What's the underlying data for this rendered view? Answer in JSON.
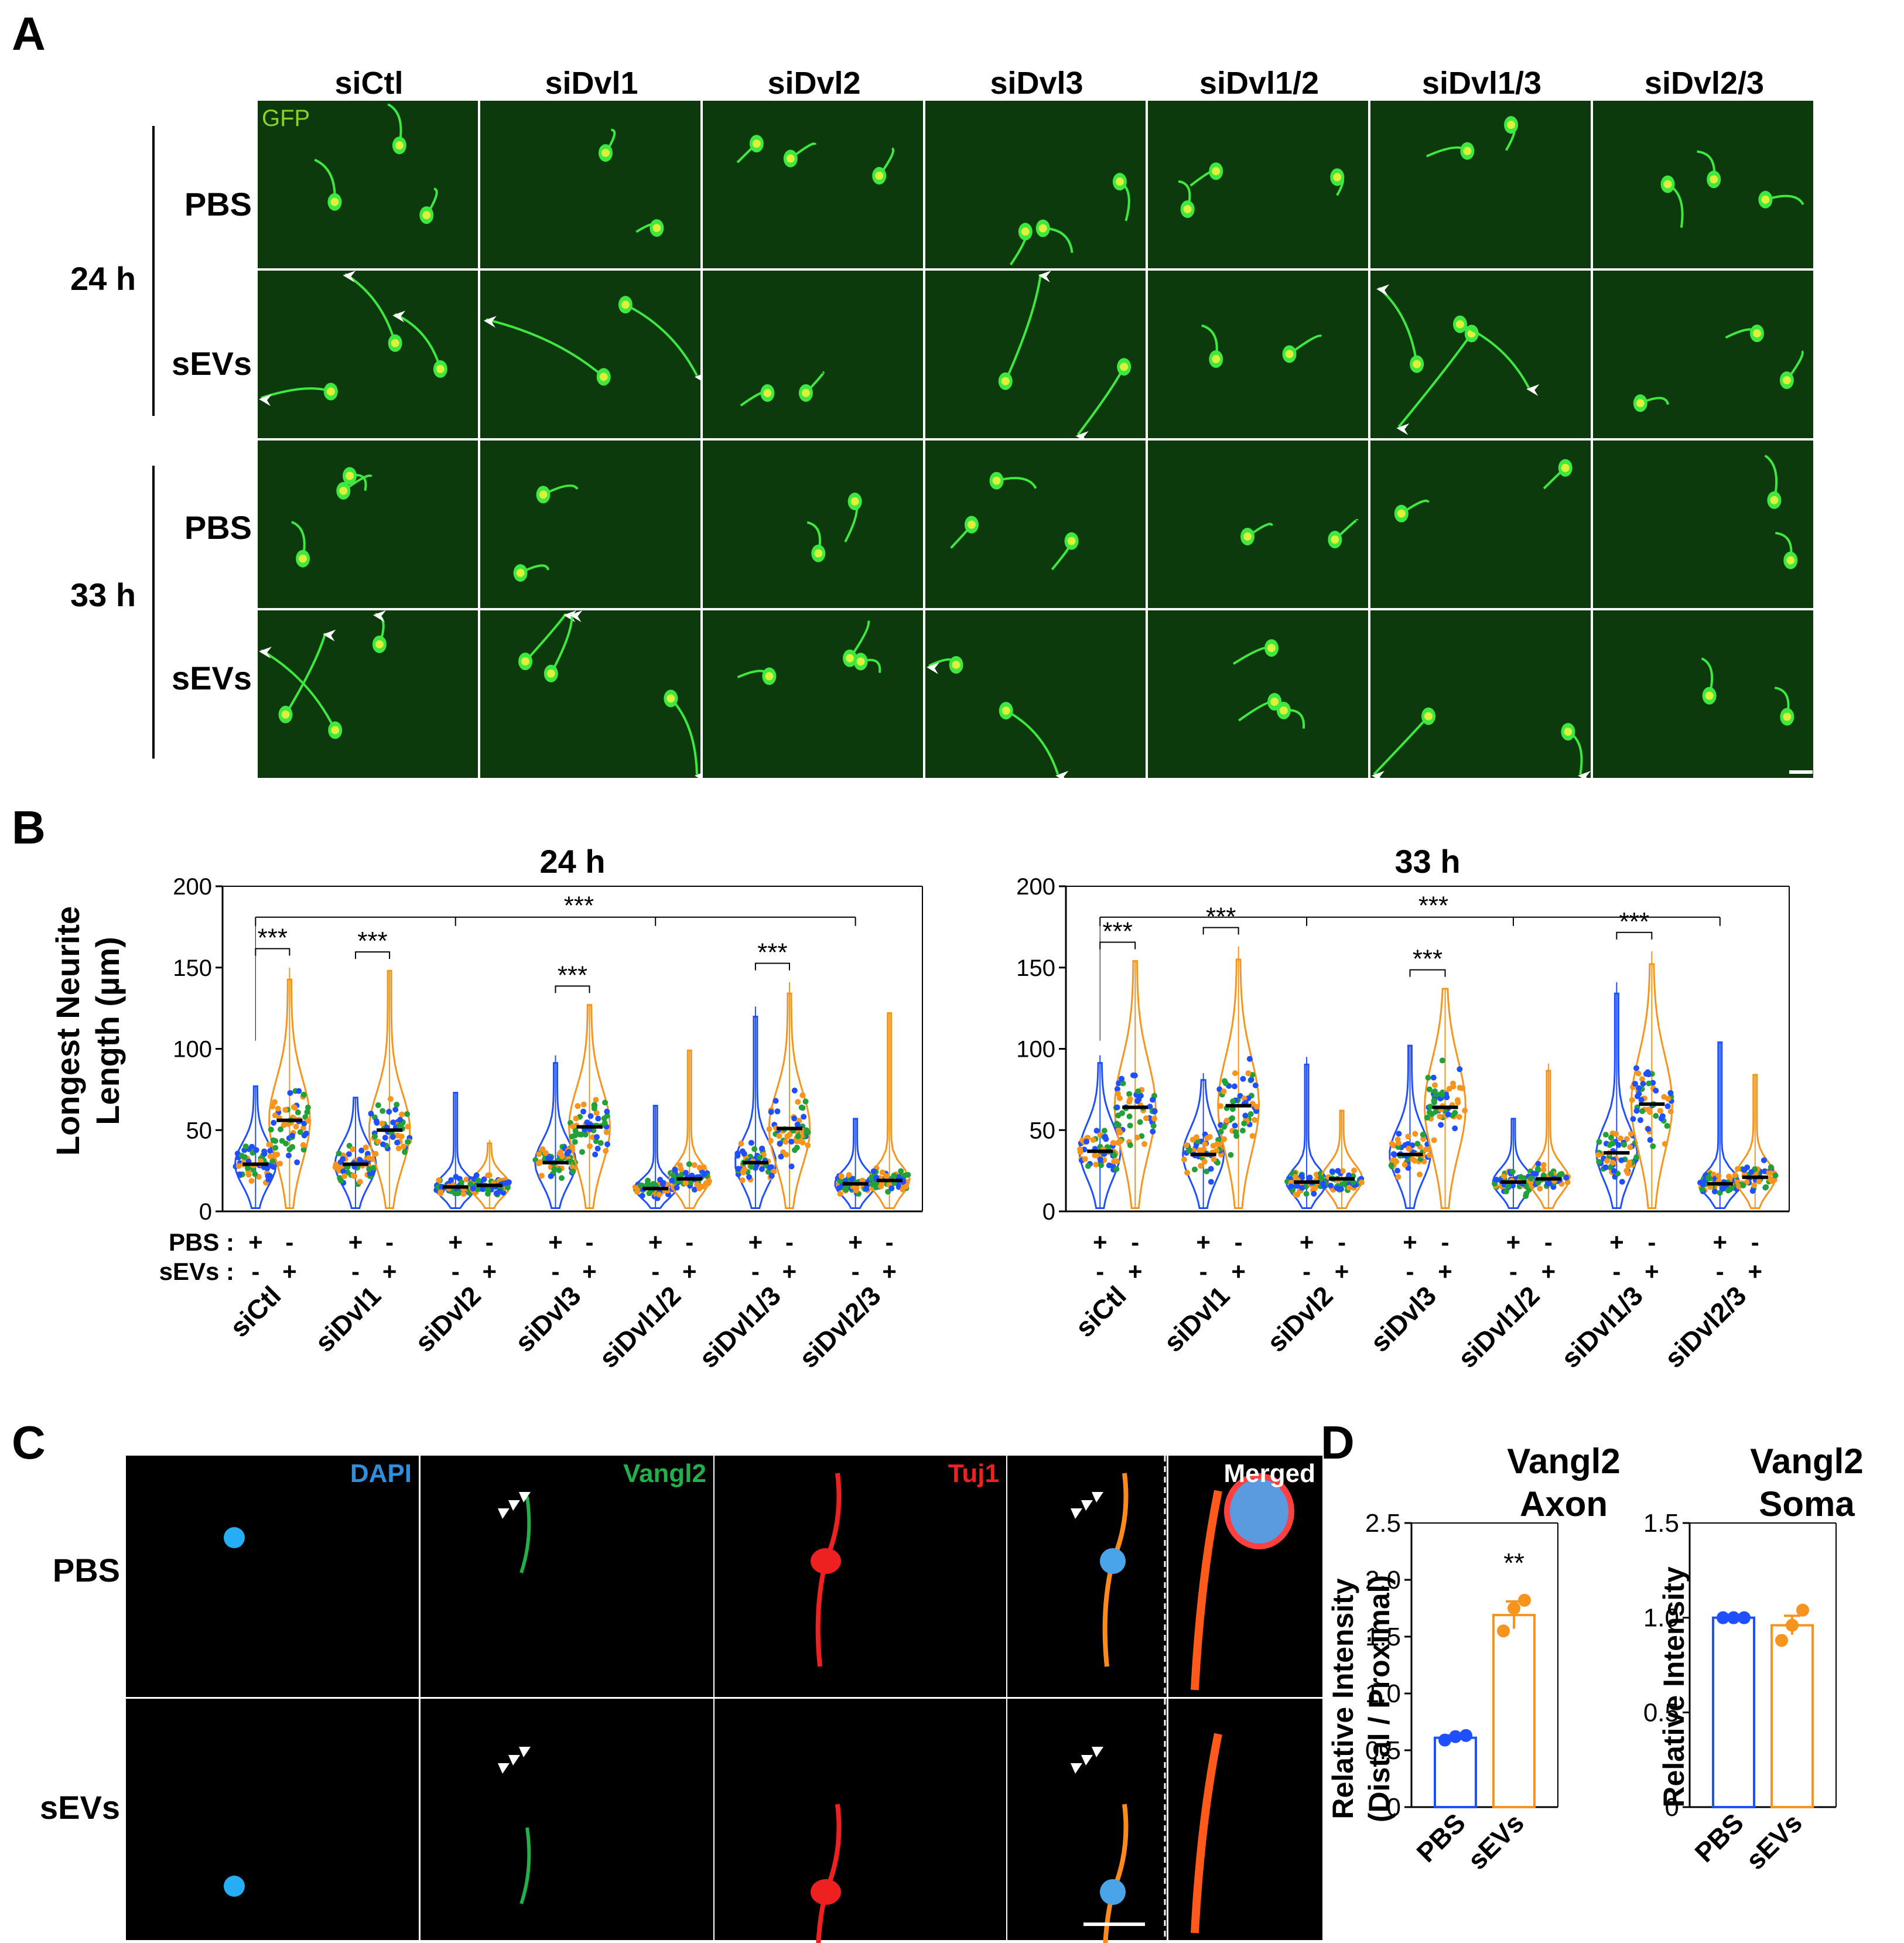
{
  "panelA": {
    "letter": "A",
    "conditions": [
      "siCtl",
      "siDvl1",
      "siDvl2",
      "siDvl3",
      "siDvl1/2",
      "siDvl1/3",
      "siDvl2/3"
    ],
    "channel_label": "GFP",
    "times": [
      "24 h",
      "33 h"
    ],
    "treatments": [
      "PBS",
      "sEVs"
    ],
    "colors": {
      "image_bg": "#0c3a0c",
      "cell": "#3ee83e",
      "soma": "#dcf03c",
      "arrow": "#ffffff"
    }
  },
  "panelB": {
    "letter": "B",
    "ylabel_line1": "Longest Neurite",
    "ylabel_line2": "Length (µm)",
    "pbs_row_label": "PBS :",
    "sevs_row_label": "sEVs :",
    "pbs_signs": [
      "+",
      "-",
      "+",
      "-",
      "+",
      "-",
      "+",
      "-",
      "+",
      "-",
      "+",
      "-",
      "+",
      "-"
    ],
    "sevs_signs": [
      "-",
      "+",
      "-",
      "+",
      "-",
      "+",
      "-",
      "+",
      "-",
      "+",
      "-",
      "+",
      "-",
      "+"
    ],
    "star_label": "***",
    "dot_colors": [
      "#1f4fff",
      "#f7941d",
      "#22a03a"
    ],
    "pbs_color": "#1f4fff",
    "sevs_color": "#f7941d"
  },
  "chart_data": [
    {
      "type": "violin",
      "title": "24 h",
      "ylabel": "Longest Neurite Length (µm)",
      "ylim": [
        0,
        200
      ],
      "yticks": [
        0,
        50,
        100,
        150,
        200
      ],
      "categories": [
        "siCtl",
        "siDvl1",
        "siDvl2",
        "siDvl3",
        "siDvl1/2",
        "siDvl1/3",
        "siDvl2/3"
      ],
      "series": [
        {
          "name": "PBS",
          "medians": [
            29,
            29,
            15,
            30,
            14,
            30,
            17
          ],
          "maxima": [
            77,
            70,
            73,
            96,
            65,
            126,
            57
          ]
        },
        {
          "name": "sEVs",
          "medians": [
            56,
            50,
            16,
            52,
            20,
            51,
            19
          ],
          "maxima": [
            150,
            148,
            44,
            127,
            99,
            141,
            122
          ]
        }
      ],
      "significance": [
        "***",
        "***",
        "***",
        "***",
        "***"
      ]
    },
    {
      "type": "violin",
      "title": "33 h",
      "ylabel": "Longest Neurite Length (µm)",
      "ylim": [
        0,
        200
      ],
      "yticks": [
        0,
        50,
        100,
        150,
        200
      ],
      "categories": [
        "siCtl",
        "siDvl1",
        "siDvl2",
        "siDvl3",
        "siDvl1/2",
        "siDvl1/3",
        "siDvl2/3"
      ],
      "series": [
        {
          "name": "PBS",
          "medians": [
            37,
            35,
            18,
            35,
            18,
            36,
            17
          ],
          "maxima": [
            96,
            85,
            95,
            102,
            57,
            141,
            104
          ]
        },
        {
          "name": "sEVs",
          "medians": [
            64,
            65,
            20,
            64,
            20,
            66,
            21
          ],
          "maxima": [
            154,
            163,
            62,
            137,
            91,
            160,
            84
          ]
        }
      ],
      "significance": [
        "***",
        "***",
        "***",
        "***",
        "***"
      ]
    },
    {
      "type": "bar",
      "title": "Vangl2 Axon",
      "ylabel": "Relative Intensity (Distal / Proximal)",
      "ylim": [
        0,
        2.5
      ],
      "yticks": [
        "0",
        "0.5",
        "1.0",
        "1.5",
        "2.0",
        "2.5"
      ],
      "categories": [
        "PBS",
        "sEVs"
      ],
      "values": [
        0.61,
        1.69
      ],
      "sem": [
        0.02,
        0.12
      ],
      "points": [
        [
          0.59,
          0.62,
          0.63
        ],
        [
          1.55,
          1.75,
          1.82
        ]
      ],
      "significance": "**"
    },
    {
      "type": "bar",
      "title": "Vangl2 Soma",
      "ylabel": "Relative Intensity",
      "ylim": [
        0,
        1.5
      ],
      "yticks": [
        "0",
        "0.5",
        "1.0",
        "1.5"
      ],
      "categories": [
        "PBS",
        "sEVs"
      ],
      "values": [
        1.0,
        0.96
      ],
      "sem": [
        0.0,
        0.05
      ],
      "points": [
        [
          1.0,
          1.0,
          1.0
        ],
        [
          0.88,
          0.96,
          1.04
        ]
      ]
    }
  ],
  "panelC": {
    "letter": "C",
    "channels": [
      "DAPI",
      "Vangl2",
      "Tuj1",
      "",
      "Merged"
    ],
    "channel_colors": [
      "#2f8fdf",
      "#22b04a",
      "#ee2020",
      "",
      "#ffffff"
    ],
    "treatments": [
      "PBS",
      "sEVs"
    ]
  },
  "panelD": {
    "letter": "D",
    "chart1_title_line1": "Vangl2",
    "chart1_title_line2": "Axon",
    "chart1_ylabel_line1": "Relative Intensity",
    "chart1_ylabel_line2": "(Distal / Proximal)",
    "chart2_title_line1": "Vangl2",
    "chart2_title_line2": "Soma",
    "chart2_ylabel": "Relative Intensity"
  }
}
